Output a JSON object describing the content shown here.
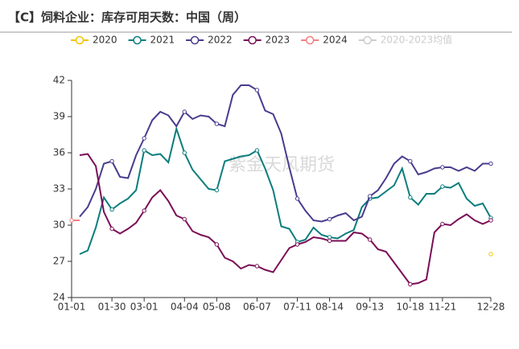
{
  "chart_data": {
    "type": "line",
    "title": "【C】饲料企业：库存可用天数：中国（周）",
    "watermark": "紫金天风期货",
    "categories": [
      "01-01",
      null,
      null,
      null,
      null,
      "01-30",
      null,
      null,
      null,
      "03-01",
      null,
      null,
      null,
      null,
      "04-04",
      null,
      null,
      null,
      "05-08",
      null,
      null,
      null,
      null,
      "06-07",
      null,
      null,
      null,
      null,
      "07-11",
      null,
      null,
      null,
      "08-14",
      null,
      null,
      null,
      null,
      "09-13",
      null,
      null,
      null,
      null,
      "10-18",
      null,
      null,
      null,
      "11-21",
      null,
      null,
      null,
      null,
      null,
      "12-28"
    ],
    "ylim": [
      24,
      42
    ],
    "yticks": [
      24,
      27,
      30,
      33,
      36,
      39,
      42
    ],
    "series": [
      {
        "name": "2020",
        "color": "#f2c500",
        "values": [
          null,
          null,
          null,
          null,
          null,
          null,
          null,
          null,
          null,
          null,
          null,
          null,
          null,
          null,
          null,
          null,
          null,
          null,
          null,
          null,
          null,
          null,
          null,
          null,
          null,
          null,
          null,
          null,
          null,
          null,
          null,
          null,
          null,
          null,
          null,
          null,
          null,
          null,
          null,
          null,
          null,
          null,
          null,
          null,
          null,
          null,
          null,
          null,
          null,
          null,
          null,
          null,
          27.6
        ]
      },
      {
        "name": "2021",
        "color": "#0b7d7d",
        "values": [
          null,
          27.6,
          27.9,
          29.8,
          32.3,
          31.3,
          31.8,
          32.2,
          32.9,
          36.2,
          35.8,
          35.9,
          35.2,
          38.0,
          36.0,
          34.6,
          33.8,
          33.0,
          32.9,
          35.3,
          35.5,
          35.7,
          35.8,
          36.2,
          34.7,
          32.9,
          29.9,
          29.7,
          28.6,
          28.8,
          29.8,
          29.2,
          29.0,
          28.9,
          29.3,
          29.6,
          31.5,
          32.2,
          32.3,
          32.8,
          33.3,
          34.7,
          32.3,
          31.7,
          32.6,
          32.6,
          33.2,
          33.1,
          33.5,
          32.2,
          31.6,
          31.8,
          30.6
        ]
      },
      {
        "name": "2022",
        "color": "#4a3b8e",
        "values": [
          null,
          30.7,
          31.5,
          33.0,
          35.1,
          35.3,
          34.0,
          33.9,
          35.8,
          37.2,
          38.7,
          39.4,
          39.1,
          38.2,
          39.4,
          38.8,
          39.1,
          39.0,
          38.4,
          38.2,
          40.8,
          41.6,
          41.6,
          41.2,
          39.5,
          39.2,
          37.6,
          34.8,
          32.2,
          31.2,
          30.4,
          30.3,
          30.5,
          30.8,
          31.0,
          30.4,
          30.7,
          32.4,
          32.9,
          33.9,
          35.1,
          35.7,
          35.3,
          34.2,
          34.4,
          34.7,
          34.8,
          34.8,
          34.5,
          34.8,
          34.5,
          35.1,
          35.1
        ]
      },
      {
        "name": "2023",
        "color": "#7a0e56",
        "values": [
          null,
          35.8,
          35.9,
          34.9,
          31.1,
          29.7,
          29.3,
          29.7,
          30.2,
          31.2,
          32.3,
          32.9,
          32.0,
          30.8,
          30.5,
          29.5,
          29.2,
          29.0,
          28.4,
          27.3,
          27.0,
          26.4,
          26.7,
          26.6,
          26.3,
          26.1,
          27.1,
          28.1,
          28.4,
          28.6,
          29.0,
          28.9,
          28.7,
          28.7,
          28.7,
          29.4,
          29.3,
          28.8,
          28.0,
          27.8,
          26.9,
          26.0,
          25.1,
          25.2,
          25.5,
          29.4,
          30.1,
          30.0,
          30.5,
          30.9,
          30.4,
          30.1,
          30.4
        ]
      },
      {
        "name": "2024",
        "color": "#f08080",
        "values": [
          30.4,
          30.4,
          null,
          null,
          null,
          null,
          null,
          null,
          null,
          null,
          null,
          null,
          null,
          null,
          null,
          null,
          null,
          null,
          null,
          null,
          null,
          null,
          null,
          null,
          null,
          null,
          null,
          null,
          null,
          null,
          null,
          null,
          null,
          null,
          null,
          null,
          null,
          null,
          null,
          null,
          null,
          null,
          null,
          null,
          null,
          null,
          null,
          null,
          null,
          null,
          null,
          null,
          null
        ]
      },
      {
        "name": "2020-2023均值",
        "color": "#cccccc",
        "values": [
          null,
          null,
          null,
          null,
          null,
          null,
          null,
          null,
          null,
          null,
          null,
          null,
          null,
          null,
          null,
          null,
          null,
          null,
          null,
          null,
          null,
          null,
          null,
          null,
          null,
          null,
          null,
          null,
          null,
          null,
          null,
          null,
          null,
          null,
          null,
          null,
          null,
          null,
          null,
          null,
          null,
          null,
          null,
          null,
          null,
          null,
          null,
          null,
          null,
          null,
          null,
          null,
          null
        ]
      }
    ]
  }
}
